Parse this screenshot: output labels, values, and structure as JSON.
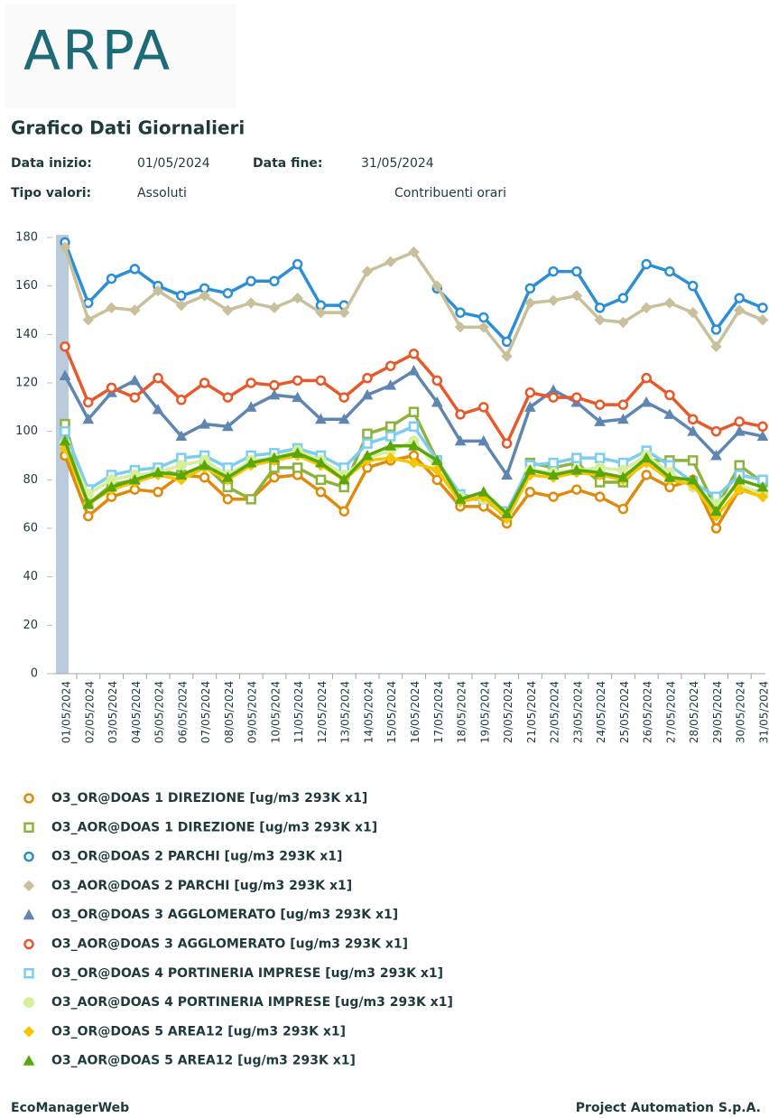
{
  "header": {
    "logo": "ARPA",
    "title": "Grafico Dati Giornalieri",
    "start_label": "Data inizio:",
    "start_value": "01/05/2024",
    "end_label": "Data fine:",
    "end_value": "31/05/2024",
    "type_label": "Tipo valori:",
    "type_value": "Assoluti",
    "mode": "Contribuenti orari"
  },
  "chart_data": {
    "type": "line",
    "categories": [
      "01/05/2024",
      "02/05/2024",
      "03/05/2024",
      "04/05/2024",
      "05/05/2024",
      "06/05/2024",
      "07/05/2024",
      "08/05/2024",
      "09/05/2024",
      "10/05/2024",
      "11/05/2024",
      "12/05/2024",
      "13/05/2024",
      "14/05/2024",
      "15/05/2024",
      "16/05/2024",
      "17/05/2024",
      "18/05/2024",
      "19/05/2024",
      "20/05/2024",
      "21/05/2024",
      "22/05/2024",
      "23/05/2024",
      "24/05/2024",
      "25/05/2024",
      "26/05/2024",
      "27/05/2024",
      "28/05/2024",
      "29/05/2024",
      "30/05/2024",
      "31/05/2024"
    ],
    "ylim": [
      0,
      180
    ],
    "yticks": [
      0,
      20,
      40,
      60,
      80,
      100,
      120,
      140,
      160,
      180
    ],
    "grid": false,
    "series": [
      {
        "name": "O3_OR@DOAS 1 DIREZIONE [ug/m3 293K x1]",
        "color": "#e08a0b",
        "marker": "circle",
        "values": [
          90,
          65,
          73,
          76,
          75,
          82,
          81,
          72,
          72,
          81,
          82,
          75,
          67,
          85,
          88,
          90,
          80,
          69,
          69,
          62,
          75,
          73,
          76,
          73,
          68,
          82,
          77,
          80,
          60,
          76,
          75
        ]
      },
      {
        "name": "O3_AOR@DOAS 1 DIREZIONE [ug/m3 293K x1]",
        "color": "#8db33a",
        "marker": "square",
        "values": [
          103,
          70,
          78,
          80,
          84,
          82,
          86,
          77,
          72,
          85,
          85,
          80,
          77,
          99,
          102,
          108,
          88,
          72,
          72,
          65,
          87,
          85,
          87,
          79,
          79,
          88,
          88,
          88,
          68,
          86,
          79
        ]
      },
      {
        "name": "O3_OR@DOAS 2 PARCHI [ug/m3 293K x1]",
        "color": "#2b8fd6",
        "marker": "circle",
        "values": [
          178,
          153,
          163,
          167,
          160,
          156,
          159,
          157,
          162,
          162,
          169,
          152,
          152,
          null,
          null,
          null,
          159,
          149,
          147,
          137,
          159,
          166,
          166,
          151,
          155,
          169,
          166,
          160,
          142,
          155,
          151
        ]
      },
      {
        "name": "O3_AOR@DOAS 2 PARCHI [ug/m3 293K x1]",
        "color": "#c8c09a",
        "marker": "diamond",
        "values": [
          176,
          146,
          151,
          150,
          158,
          152,
          156,
          150,
          153,
          151,
          155,
          149,
          149,
          166,
          170,
          174,
          160,
          143,
          143,
          131,
          153,
          154,
          156,
          146,
          145,
          151,
          153,
          149,
          135,
          150,
          146
        ]
      },
      {
        "name": "O3_OR@DOAS 3 AGGLOMERATO [ug/m3 293K x1]",
        "color": "#5e86b0",
        "marker": "triangle",
        "values": [
          123,
          105,
          116,
          121,
          109,
          98,
          103,
          102,
          110,
          115,
          114,
          105,
          105,
          115,
          119,
          125,
          112,
          96,
          96,
          82,
          110,
          117,
          112,
          104,
          105,
          112,
          107,
          100,
          90,
          100,
          98
        ]
      },
      {
        "name": "O3_AOR@DOAS 3 AGGLOMERATO [ug/m3 293K x1]",
        "color": "#e8582a",
        "marker": "circle",
        "values": [
          135,
          112,
          118,
          114,
          122,
          113,
          120,
          114,
          120,
          119,
          121,
          121,
          114,
          122,
          127,
          132,
          121,
          107,
          110,
          95,
          116,
          114,
          114,
          111,
          111,
          122,
          115,
          105,
          100,
          104,
          102
        ]
      },
      {
        "name": "O3_OR@DOAS 4 PORTINERIA IMPRESE [ug/m3 293K x1]",
        "color": "#7dcdf0",
        "marker": "square",
        "values": [
          100,
          76,
          82,
          84,
          85,
          89,
          90,
          85,
          90,
          91,
          93,
          90,
          85,
          95,
          98,
          102,
          88,
          74,
          72,
          67,
          86,
          87,
          89,
          89,
          87,
          92,
          86,
          79,
          73,
          82,
          80
        ]
      },
      {
        "name": "O3_AOR@DOAS 4 PORTINERIA IMPRESE [ug/m3 293K x1]",
        "color": "#d6ef9a",
        "marker": "dot",
        "values": [
          95,
          74,
          80,
          82,
          83,
          86,
          88,
          82,
          88,
          89,
          92,
          88,
          82,
          89,
          92,
          96,
          85,
          73,
          72,
          66,
          84,
          83,
          84,
          85,
          84,
          90,
          83,
          77,
          70,
          78,
          74
        ]
      },
      {
        "name": "O3_OR@DOAS 5 AREA12 [ug/m3 293K x1]",
        "color": "#f7c500",
        "marker": "diamond",
        "values": [
          93,
          70,
          76,
          79,
          82,
          80,
          85,
          80,
          86,
          88,
          90,
          86,
          80,
          88,
          89,
          87,
          84,
          71,
          73,
          64,
          82,
          81,
          83,
          82,
          80,
          87,
          80,
          78,
          65,
          76,
          73
        ]
      },
      {
        "name": "O3_AOR@DOAS 5 AREA12 [ug/m3 293K x1]",
        "color": "#5ba70a",
        "marker": "triangle",
        "values": [
          96,
          70,
          77,
          80,
          83,
          82,
          86,
          81,
          87,
          89,
          91,
          87,
          80,
          90,
          94,
          94,
          88,
          72,
          75,
          66,
          84,
          82,
          84,
          83,
          81,
          89,
          81,
          80,
          67,
          80,
          77
        ]
      }
    ]
  },
  "footer": {
    "left": "EcoManagerWeb",
    "right": "Project Automation S.p.A."
  }
}
